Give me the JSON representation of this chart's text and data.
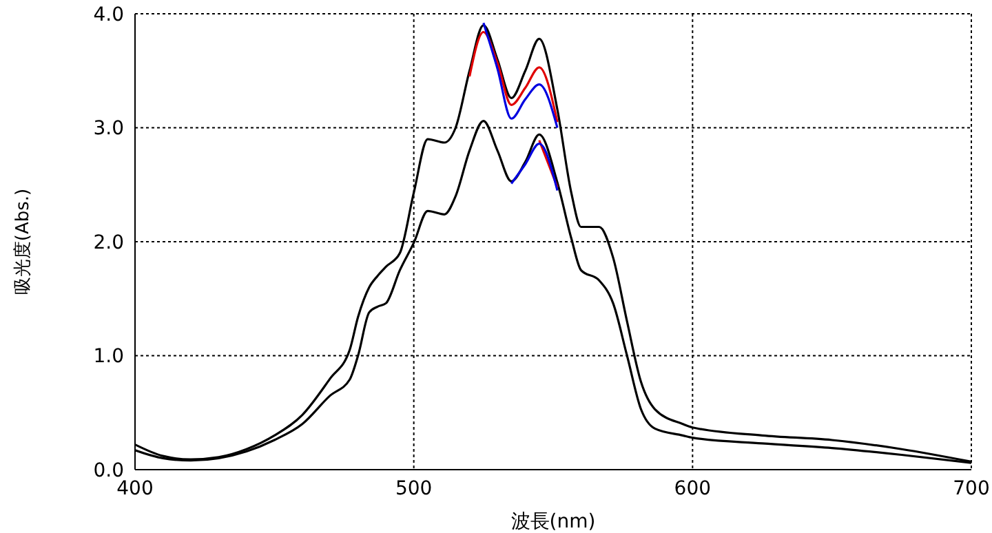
{
  "chart_data": {
    "type": "line",
    "xlabel": "波長(nm)",
    "ylabel": "吸光度(Abs.)",
    "x": [
      400,
      410,
      420,
      430,
      440,
      450,
      460,
      470,
      477,
      480,
      484,
      487,
      490,
      495,
      500,
      505,
      511,
      515,
      520,
      525,
      530,
      535,
      540,
      545,
      551.5,
      556.5,
      560,
      566.5,
      571.5,
      576.5,
      581.5,
      586.5,
      596.5,
      600,
      625,
      650,
      675,
      700
    ],
    "series": [
      {
        "color": "#000000",
        "values": [
          0.22,
          0.12,
          0.09,
          0.11,
          0.18,
          0.3,
          0.48,
          0.8,
          1.05,
          1.34,
          1.6,
          1.7,
          1.78,
          1.9,
          2.43,
          2.9,
          2.87,
          3.0,
          3.5,
          3.9,
          3.6,
          3.26,
          3.5,
          3.78,
          3.16,
          2.43,
          2.13,
          2.13,
          1.86,
          1.3,
          0.77,
          0.53,
          0.4,
          0.37,
          0.3,
          0.26,
          0.18,
          0.07
        ]
      },
      {
        "color": "#e00000",
        "values": [
          null,
          null,
          null,
          null,
          null,
          null,
          null,
          null,
          null,
          null,
          null,
          null,
          null,
          null,
          null,
          null,
          null,
          null,
          3.45,
          3.84,
          3.57,
          3.2,
          3.35,
          3.53,
          3.05,
          null,
          null,
          null,
          null,
          null,
          null,
          null,
          null,
          null,
          null,
          null,
          null,
          null
        ]
      },
      {
        "color": "#0000e0",
        "values": [
          null,
          null,
          null,
          null,
          null,
          null,
          null,
          null,
          null,
          null,
          null,
          null,
          null,
          null,
          null,
          null,
          null,
          null,
          null,
          3.92,
          3.52,
          3.08,
          3.25,
          3.38,
          3.0,
          null,
          null,
          null,
          null,
          null,
          null,
          null,
          null,
          null,
          null,
          null,
          null,
          null
        ]
      },
      {
        "color": "#000000",
        "values": [
          0.17,
          0.1,
          0.08,
          0.1,
          0.16,
          0.26,
          0.4,
          0.65,
          0.79,
          1.0,
          1.38,
          1.43,
          1.46,
          1.75,
          1.99,
          2.27,
          2.24,
          2.4,
          2.8,
          3.06,
          2.8,
          2.53,
          2.7,
          2.94,
          2.52,
          2.03,
          1.75,
          1.66,
          1.46,
          1.0,
          0.53,
          0.36,
          0.3,
          0.28,
          0.23,
          0.19,
          0.13,
          0.06
        ]
      },
      {
        "color": "#e00000",
        "values": [
          null,
          null,
          null,
          null,
          null,
          null,
          null,
          null,
          null,
          null,
          null,
          null,
          null,
          null,
          null,
          null,
          null,
          null,
          null,
          null,
          null,
          null,
          null,
          2.89,
          2.48,
          null,
          null,
          null,
          null,
          null,
          null,
          null,
          null,
          null,
          null,
          null,
          null,
          null
        ]
      },
      {
        "color": "#0000e0",
        "values": [
          null,
          null,
          null,
          null,
          null,
          null,
          null,
          null,
          null,
          null,
          null,
          null,
          null,
          null,
          null,
          null,
          null,
          null,
          null,
          null,
          null,
          2.51,
          2.68,
          2.86,
          2.45,
          null,
          null,
          null,
          null,
          null,
          null,
          null,
          null,
          null,
          null,
          null,
          null,
          null
        ]
      }
    ],
    "xlim": [
      400,
      700
    ],
    "xticks": [
      400,
      500,
      600,
      700
    ],
    "ylim": [
      0,
      4
    ],
    "yticks": [
      {
        "value": 0,
        "label": "0.0"
      },
      {
        "value": 1,
        "label": "1.0"
      },
      {
        "value": 2,
        "label": "2.0"
      },
      {
        "value": 3,
        "label": "3.0"
      },
      {
        "value": 4,
        "label": "4.0"
      }
    ],
    "grid": true,
    "marker": "none",
    "line_style": "solid"
  }
}
